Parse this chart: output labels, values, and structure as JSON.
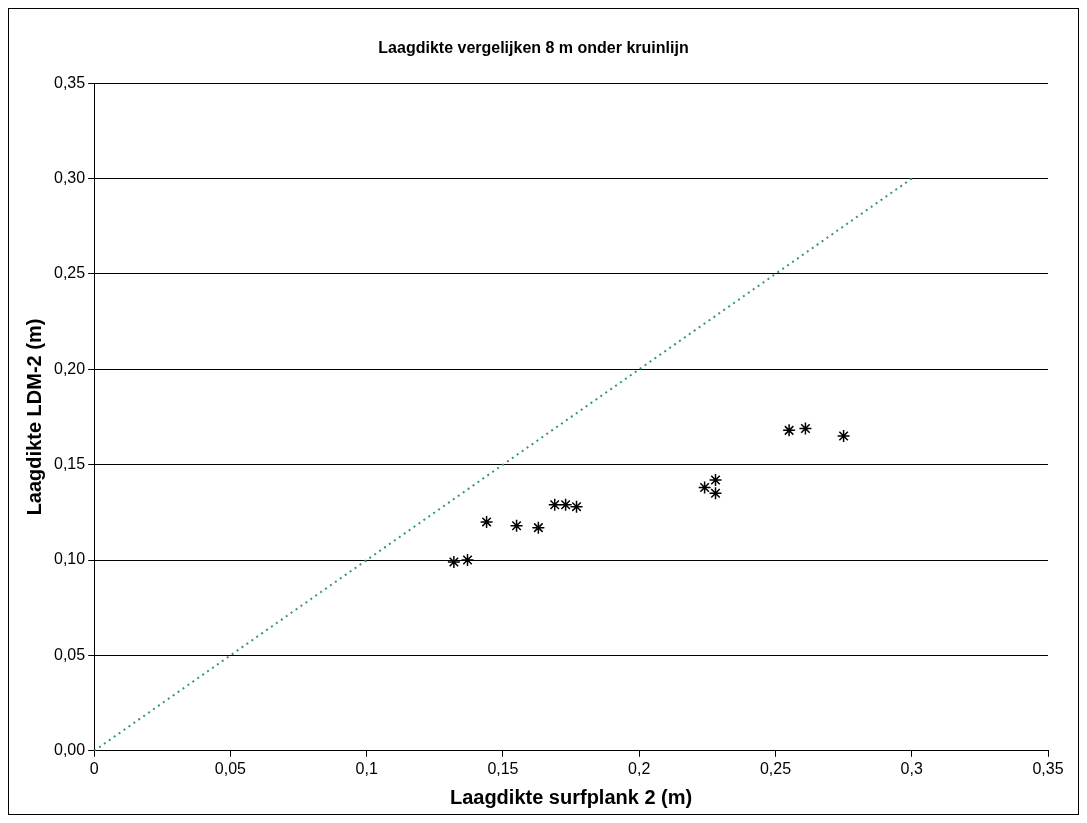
{
  "chart_data": {
    "type": "scatter",
    "title": "Laagdikte vergelijken 8 m onder kruinlijn",
    "xlabel": "Laagdikte surfplank 2 (m)",
    "ylabel": "Laagdikte LDM-2 (m)",
    "series": [
      {
        "type": "scatter",
        "color": "#000000",
        "marker": "cross",
        "x": [
          0.132,
          0.137,
          0.144,
          0.155,
          0.163,
          0.169,
          0.173,
          0.177,
          0.224,
          0.228,
          0.228,
          0.255,
          0.261,
          0.275
        ],
        "values": [
          0.099,
          0.1,
          0.12,
          0.118,
          0.117,
          0.129,
          0.129,
          0.128,
          0.138,
          0.142,
          0.135,
          0.168,
          0.169,
          0.165
        ]
      },
      {
        "type": "line",
        "color": "#339966",
        "line_style": "dotted",
        "marker": "none",
        "x": [
          0,
          0.3
        ],
        "values": [
          0,
          0.3
        ]
      }
    ],
    "xlim": [
      0,
      0.35
    ],
    "xticks": [
      {
        "value": 0,
        "label": "0"
      },
      {
        "value": 0.05,
        "label": "0,05"
      },
      {
        "value": 0.1,
        "label": "0,1"
      },
      {
        "value": 0.15,
        "label": "0,15"
      },
      {
        "value": 0.2,
        "label": "0,2"
      },
      {
        "value": 0.25,
        "label": "0,25"
      },
      {
        "value": 0.3,
        "label": "0,3"
      },
      {
        "value": 0.35,
        "label": "0,35"
      }
    ],
    "ylim": [
      0,
      0.35
    ],
    "yticks": [
      {
        "value": 0,
        "label": "0,00"
      },
      {
        "value": 0.05,
        "label": "0,05"
      },
      {
        "value": 0.1,
        "label": "0,10"
      },
      {
        "value": 0.15,
        "label": "0,15"
      },
      {
        "value": 0.2,
        "label": "0,20"
      },
      {
        "value": 0.25,
        "label": "0,25"
      },
      {
        "value": 0.3,
        "label": "0,30"
      },
      {
        "value": 0.35,
        "label": "0,35"
      }
    ],
    "grid": "y",
    "legend": false
  }
}
